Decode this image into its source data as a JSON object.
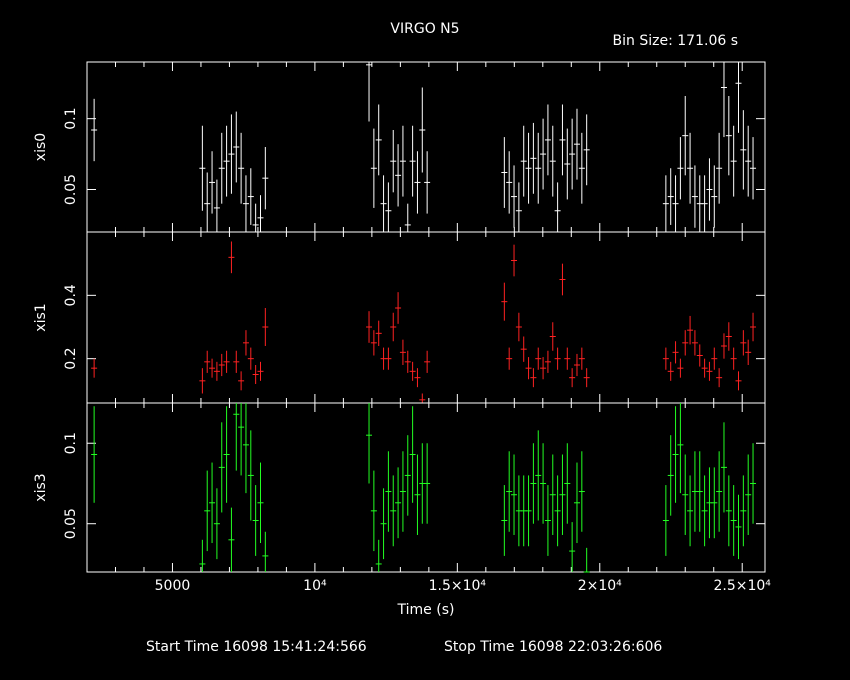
{
  "header": {
    "title": "VIRGO N5",
    "bin_size": "Bin Size: 171.06 s"
  },
  "footer": {
    "start_time": "Start Time 16098 15:41:24:566",
    "stop_time": "Stop Time 16098 22:03:26:606"
  },
  "chart_data": [
    {
      "type": "scatter",
      "title": "VIRGO N5",
      "ylabel": "xis0",
      "xlabel": "Time (s)",
      "xlim": [
        2000,
        25800
      ],
      "ylim": [
        0.02,
        0.14
      ],
      "yticks": [
        {
          "value": 0.05,
          "label": "0.05"
        },
        {
          "value": 0.1,
          "label": "0.1"
        }
      ],
      "color": "#ffffff",
      "series": [
        {
          "x": [
            2250,
            6050,
            6220,
            6390,
            6560,
            6730,
            6900,
            7070,
            7240,
            7410,
            7580,
            7750,
            7920,
            8090,
            8260,
            11900,
            12070,
            12240,
            12410,
            12580,
            12750,
            12920,
            13090,
            13260,
            13430,
            13600,
            13770,
            13940,
            16650,
            16820,
            16990,
            17160,
            17330,
            17500,
            17670,
            17840,
            18010,
            18180,
            18350,
            18520,
            18690,
            18860,
            19030,
            19200,
            19370,
            19540,
            22320,
            22490,
            22660,
            22830,
            23000,
            23170,
            23340,
            23510,
            23680,
            23850,
            24020,
            24190,
            24360,
            24530,
            24700,
            24870,
            25040,
            25210,
            25380
          ],
          "y": [
            0.092,
            0.065,
            0.04,
            0.055,
            0.037,
            0.065,
            0.07,
            0.075,
            0.08,
            0.065,
            0.04,
            0.045,
            0.025,
            0.03,
            0.058,
            0.138,
            0.065,
            0.085,
            0.04,
            0.035,
            0.07,
            0.06,
            0.07,
            0.025,
            0.07,
            0.055,
            0.092,
            0.055,
            0.062,
            0.055,
            0.045,
            0.035,
            0.07,
            0.065,
            0.072,
            0.065,
            0.075,
            0.085,
            0.07,
            0.035,
            0.085,
            0.068,
            0.075,
            0.082,
            0.065,
            0.078,
            0.04,
            0.045,
            0.04,
            0.065,
            0.088,
            0.065,
            0.045,
            0.04,
            0.04,
            0.05,
            0.045,
            0.065,
            0.122,
            0.088,
            0.07,
            0.125,
            0.078,
            0.07,
            0.065
          ],
          "err": [
            0.022,
            0.03,
            0.022,
            0.022,
            0.02,
            0.025,
            0.025,
            0.028,
            0.025,
            0.025,
            0.02,
            0.02,
            0.015,
            0.016,
            0.022,
            0.04,
            0.028,
            0.025,
            0.02,
            0.02,
            0.022,
            0.022,
            0.025,
            0.015,
            0.025,
            0.022,
            0.03,
            0.022,
            0.025,
            0.022,
            0.022,
            0.02,
            0.025,
            0.025,
            0.025,
            0.025,
            0.025,
            0.025,
            0.025,
            0.02,
            0.025,
            0.025,
            0.025,
            0.025,
            0.025,
            0.025,
            0.02,
            0.02,
            0.02,
            0.022,
            0.028,
            0.025,
            0.022,
            0.02,
            0.02,
            0.022,
            0.022,
            0.025,
            0.035,
            0.028,
            0.025,
            0.035,
            0.028,
            0.025,
            0.022
          ]
        }
      ]
    },
    {
      "type": "scatter",
      "ylabel": "xis1",
      "xlabel": "Time (s)",
      "xlim": [
        2000,
        25800
      ],
      "ylim": [
        0.06,
        0.6
      ],
      "yticks": [
        {
          "value": 0.2,
          "label": "0.2"
        },
        {
          "value": 0.4,
          "label": "0.4"
        }
      ],
      "color": "#ff2222",
      "series": [
        {
          "x": [
            2250,
            6050,
            6220,
            6390,
            6560,
            6730,
            6900,
            7070,
            7240,
            7410,
            7580,
            7750,
            7920,
            8090,
            8260,
            11900,
            12070,
            12240,
            12410,
            12580,
            12750,
            12920,
            13090,
            13260,
            13430,
            13600,
            13770,
            13940,
            16650,
            16820,
            16990,
            17160,
            17330,
            17500,
            17670,
            17840,
            18010,
            18180,
            18350,
            18520,
            18690,
            18860,
            19030,
            19200,
            19370,
            19540,
            22320,
            22490,
            22660,
            22830,
            23000,
            23170,
            23340,
            23510,
            23680,
            23850,
            24020,
            24190,
            24360,
            24530,
            24700,
            24870,
            25040,
            25210,
            25380
          ],
          "y": [
            0.17,
            0.13,
            0.19,
            0.17,
            0.16,
            0.18,
            0.19,
            0.52,
            0.19,
            0.13,
            0.25,
            0.2,
            0.15,
            0.16,
            0.3,
            0.3,
            0.25,
            0.28,
            0.2,
            0.2,
            0.3,
            0.36,
            0.22,
            0.19,
            0.16,
            0.14,
            0.07,
            0.19,
            0.38,
            0.2,
            0.51,
            0.3,
            0.23,
            0.17,
            0.14,
            0.2,
            0.17,
            0.19,
            0.27,
            0.2,
            0.45,
            0.2,
            0.14,
            0.18,
            0.2,
            0.14,
            0.2,
            0.16,
            0.22,
            0.17,
            0.25,
            0.29,
            0.25,
            0.21,
            0.17,
            0.16,
            0.2,
            0.14,
            0.24,
            0.27,
            0.2,
            0.13,
            0.25,
            0.22,
            0.3
          ],
          "err": [
            0.03,
            0.04,
            0.035,
            0.03,
            0.03,
            0.035,
            0.035,
            0.05,
            0.035,
            0.03,
            0.04,
            0.035,
            0.03,
            0.03,
            0.06,
            0.05,
            0.04,
            0.04,
            0.035,
            0.035,
            0.045,
            0.05,
            0.04,
            0.035,
            0.03,
            0.03,
            0.02,
            0.035,
            0.06,
            0.035,
            0.05,
            0.045,
            0.04,
            0.035,
            0.03,
            0.035,
            0.035,
            0.035,
            0.045,
            0.035,
            0.05,
            0.035,
            0.03,
            0.035,
            0.035,
            0.03,
            0.035,
            0.03,
            0.035,
            0.03,
            0.04,
            0.045,
            0.04,
            0.035,
            0.03,
            0.03,
            0.035,
            0.03,
            0.04,
            0.045,
            0.035,
            0.03,
            0.04,
            0.04,
            0.045
          ]
        }
      ]
    },
    {
      "type": "scatter",
      "ylabel": "xis3",
      "xlabel": "Time (s)",
      "xlim": [
        2000,
        25800
      ],
      "ylim": [
        0.02,
        0.125
      ],
      "xticks": [
        {
          "value": 5000,
          "label": "5000"
        },
        {
          "value": 10000,
          "label": "10⁴"
        },
        {
          "value": 15000,
          "label": "1.5×10⁴"
        },
        {
          "value": 20000,
          "label": "2×10⁴"
        },
        {
          "value": 25000,
          "label": "2.5×10⁴"
        }
      ],
      "yticks": [
        {
          "value": 0.05,
          "label": "0.05"
        },
        {
          "value": 0.1,
          "label": "0.1"
        }
      ],
      "color": "#22ff22",
      "series": [
        {
          "x": [
            2250,
            6050,
            6220,
            6390,
            6560,
            6730,
            6900,
            7070,
            7240,
            7410,
            7580,
            7750,
            7920,
            8090,
            8260,
            11900,
            12070,
            12240,
            12410,
            12580,
            12750,
            12920,
            13090,
            13260,
            13430,
            13600,
            13770,
            13940,
            16650,
            16820,
            16990,
            17160,
            17330,
            17500,
            17670,
            17840,
            18010,
            18180,
            18350,
            18520,
            18690,
            18860,
            19030,
            19200,
            19370,
            19540,
            22320,
            22490,
            22660,
            22830,
            23000,
            23170,
            23340,
            23510,
            23680,
            23850,
            24020,
            24190,
            24360,
            24530,
            24700,
            24870,
            25040,
            25210,
            25380
          ],
          "y": [
            0.093,
            0.025,
            0.058,
            0.063,
            0.05,
            0.085,
            0.093,
            0.04,
            0.118,
            0.11,
            0.099,
            0.08,
            0.052,
            0.063,
            0.03,
            0.105,
            0.058,
            0.025,
            0.05,
            0.07,
            0.058,
            0.063,
            0.07,
            0.08,
            0.093,
            0.068,
            0.075,
            0.075,
            0.052,
            0.07,
            0.068,
            0.058,
            0.058,
            0.058,
            0.075,
            0.08,
            0.075,
            0.052,
            0.068,
            0.058,
            0.068,
            0.075,
            0.033,
            0.063,
            0.07,
            0.02,
            0.052,
            0.08,
            0.093,
            0.099,
            0.068,
            0.058,
            0.07,
            0.07,
            0.058,
            0.063,
            0.063,
            0.07,
            0.085,
            0.058,
            0.052,
            0.048,
            0.058,
            0.068,
            0.075
          ],
          "err": [
            0.03,
            0.015,
            0.025,
            0.025,
            0.022,
            0.028,
            0.03,
            0.02,
            0.035,
            0.03,
            0.03,
            0.028,
            0.022,
            0.025,
            0.015,
            0.03,
            0.025,
            0.015,
            0.022,
            0.025,
            0.022,
            0.022,
            0.025,
            0.025,
            0.03,
            0.025,
            0.025,
            0.025,
            0.022,
            0.025,
            0.025,
            0.022,
            0.022,
            0.022,
            0.025,
            0.028,
            0.025,
            0.022,
            0.025,
            0.022,
            0.025,
            0.025,
            0.018,
            0.025,
            0.025,
            0.015,
            0.022,
            0.025,
            0.03,
            0.03,
            0.025,
            0.022,
            0.025,
            0.025,
            0.022,
            0.022,
            0.022,
            0.025,
            0.028,
            0.022,
            0.022,
            0.02,
            0.022,
            0.025,
            0.025
          ]
        }
      ]
    }
  ]
}
